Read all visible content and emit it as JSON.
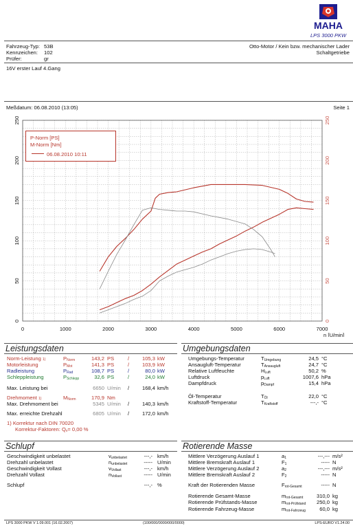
{
  "header": {
    "logo_text": "MAHA",
    "product": "LPS 3000 PKW",
    "fahrzeug_typ_label": "Fahrzeug-Typ:",
    "fahrzeug_typ": "53B",
    "kennzeichen_label": "Kennzeichen:",
    "kennzeichen": "102",
    "pruefer_label": "Prüfer:",
    "pruefer": "gr",
    "engine": "Otto-Motor / Kein bzw. mechanischer Lader",
    "gearbox": "Schaltgetriebe",
    "remark": "16V erster Lauf 4.Gang",
    "measure_date": "Meßdatum: 06.08.2010 (13:05)",
    "page": "Seite 1"
  },
  "chart_data": {
    "type": "line",
    "legend": [
      "P-Norm [PS]",
      "M-Norm [Nm]",
      "06.08.2010 10:11"
    ],
    "xlim": [
      0,
      7000
    ],
    "ylim": [
      0,
      250
    ],
    "xticks": [
      0,
      1000,
      2000,
      3000,
      4000,
      5000,
      6000,
      7000
    ],
    "yticks": [
      0,
      50,
      100,
      150,
      200,
      250
    ],
    "xlabel": "n [U/min]",
    "grid": true,
    "legend_position": "top-left",
    "colors": {
      "primary": "#b7352b",
      "secondary": "#8a8a8a"
    },
    "series": [
      {
        "name": "P-Norm [PS]",
        "color": "#b7352b",
        "x": [
          1800,
          2000,
          2200,
          2400,
          2600,
          2800,
          3000,
          3200,
          3400,
          3600,
          3800,
          4000,
          4200,
          4400,
          4600,
          4800,
          5000,
          5200,
          5400,
          5600,
          5800,
          6000,
          6200,
          6400,
          6600,
          6800
        ],
        "y": [
          14,
          18,
          23,
          28,
          32,
          38,
          46,
          55,
          63,
          71,
          76,
          81,
          86,
          90,
          96,
          101,
          106,
          112,
          117,
          123,
          128,
          133,
          139,
          141,
          140,
          139
        ]
      },
      {
        "name": "M-Norm [Nm]",
        "color": "#b7352b",
        "x": [
          1800,
          2000,
          2200,
          2400,
          2600,
          2800,
          3000,
          3100,
          3200,
          3400,
          3600,
          4000,
          4400,
          4800,
          5200,
          5600,
          6000,
          6200,
          6400,
          6600,
          6800
        ],
        "y": [
          62,
          80,
          93,
          103,
          114,
          127,
          137,
          153,
          158,
          160,
          161,
          166,
          170,
          170,
          170,
          169,
          164,
          159,
          152,
          149,
          148
        ]
      },
      {
        "color": "#8a8a8a",
        "x": [
          1800,
          2000,
          2200,
          2400,
          2600,
          2800,
          3000,
          3200,
          3400,
          3600,
          3800,
          4000,
          4400,
          4800,
          5200,
          5400,
          5600,
          5800,
          5900
        ],
        "y": [
          40,
          62,
          83,
          101,
          120,
          138,
          141,
          139,
          138,
          137,
          137,
          136,
          131,
          127,
          121,
          114,
          105,
          89,
          80
        ]
      },
      {
        "color": "#8a8a8a",
        "x": [
          1800,
          2000,
          2200,
          2400,
          2600,
          2800,
          3000,
          3200,
          3400,
          3600,
          3800,
          4000,
          4200,
          4400,
          4600,
          4800,
          5000,
          5200,
          5400,
          5600,
          5800,
          5900
        ],
        "y": [
          10,
          14,
          18,
          22,
          27,
          31,
          38,
          50,
          56,
          61,
          64,
          67,
          71,
          76,
          80,
          84,
          87,
          89,
          90,
          89,
          86,
          84
        ]
      }
    ]
  },
  "leistung": {
    "title": "Leistungsdaten",
    "rows": [
      {
        "label": "Norm-Leistung",
        "note": "1)",
        "sym": "P",
        "sub": "Norm",
        "v1": "143,2",
        "u1": "PS",
        "sep": "/",
        "v2": "105,3",
        "u2": "kW"
      },
      {
        "label": "Motorleistung",
        "note": "",
        "sym": "P",
        "sub": "Mot",
        "v1": "141,3",
        "u1": "PS",
        "sep": "/",
        "v2": "103,9",
        "u2": "kW"
      },
      {
        "label": "Radleistung",
        "note": "",
        "sym": "P",
        "sub": "Rad",
        "v1": "108,7",
        "u1": "PS",
        "sep": "/",
        "v2": "80,0",
        "u2": "kW"
      },
      {
        "label": "Schleppleistung",
        "note": "",
        "sym": "P",
        "sub": "Schlepp",
        "v1": "32,6",
        "u1": "PS",
        "sep": "/",
        "v2": "24,0",
        "u2": "kW"
      }
    ],
    "max_leistung": {
      "label": "Max. Leistung bei",
      "rpm": "6650",
      "unit": "U/min",
      "sep": "/",
      "v": "168,4",
      "u": "km/h"
    },
    "drehmoment": {
      "label": "Drehmoment",
      "note": "1)",
      "sym": "M",
      "sub": "Norm",
      "v": "170,9",
      "u": "Nm"
    },
    "max_drehmoment": {
      "label": "Max. Drehmoment bei",
      "rpm": "5345",
      "unit": "U/min",
      "sep": "/",
      "v": "140,3",
      "u": "km/h"
    },
    "max_drehzahl": {
      "label": "Max. erreichte Drehzahl",
      "rpm": "6805",
      "unit": "U/min",
      "sep": "/",
      "v": "172,0",
      "u": "km/h"
    },
    "korrektur_1": "1) Korrektur nach DIN 70020",
    "korrektur_2": "Korrektur-Faktoren: Q",
    "korrektur_sub": "v",
    "korrektur_val": "= 0,00 %"
  },
  "umgebung": {
    "title": "Umgebungsdaten",
    "rows": [
      {
        "label": "Umgebungs-Temperatur",
        "sym": "T",
        "sub": "Umgebung",
        "v": "24,5",
        "u": "°C"
      },
      {
        "label": "Ansaugluft-Temperatur",
        "sym": "T",
        "sub": "Ansaugluft",
        "v": "24,7",
        "u": "°C"
      },
      {
        "label": "Relative Luftfeuchte",
        "sym": "H",
        "sub": "Luft",
        "v": "50,2",
        "u": "%"
      },
      {
        "label": "Luftdruck",
        "sym": "p",
        "sub": "Luft",
        "v": "1007,6",
        "u": "hPa"
      },
      {
        "label": "Dampfdruck",
        "sym": "p",
        "sub": "Dampf",
        "v": "15,4",
        "u": "hPa"
      },
      {
        "label": "Öl-Temperatur",
        "sym": "T",
        "sub": "Öl",
        "v": "22,0",
        "u": "°C"
      },
      {
        "label": "Kraftstoff-Temperatur",
        "sym": "T",
        "sub": "Kraftstoff",
        "v": "---,-",
        "u": "°C"
      }
    ]
  },
  "schlupf": {
    "title": "Schlupf",
    "rows": [
      {
        "label": "Geschwindigkeit unbelastet",
        "sym": "v",
        "sub": "unbelastet",
        "v": "---,-",
        "u": "km/h"
      },
      {
        "label": "Drehzahl unbelastet",
        "sym": "n",
        "sub": "unbelastet",
        "v": "-----",
        "u": "U/min"
      },
      {
        "label": "Geschwindigkeit Vollast",
        "sym": "v",
        "sub": "Vollast",
        "v": "---,-",
        "u": "km/h"
      },
      {
        "label": "Drehzahl Vollast",
        "sym": "n",
        "sub": "Vollast",
        "v": "-----",
        "u": "U/min"
      },
      {
        "label": "Schlupf",
        "sym": "",
        "sub": "",
        "v": "---,-",
        "u": "%"
      }
    ]
  },
  "masse": {
    "title": "Rotierende Masse",
    "rows": [
      {
        "label": "Mittlere Verzögerung Auslauf 1",
        "sym": "a",
        "sub": "1",
        "v": "---,---",
        "u": "m/s²"
      },
      {
        "label": "Mittlere Bremskraft Auslauf 1",
        "sym": "F",
        "sub": "1",
        "v": "-----",
        "u": "N"
      },
      {
        "label": "Mittlere Verzögerung Auslauf 2",
        "sym": "a",
        "sub": "2",
        "v": "---,---",
        "u": "m/s²"
      },
      {
        "label": "Mittlere Bremskraft Auslauf 2",
        "sym": "F",
        "sub": "2",
        "v": "-----",
        "u": "N"
      },
      {
        "label": "Kraft der Rotierenden Masse",
        "sym": "F",
        "sub": "rot-Gesamt",
        "v": "-----",
        "u": "N"
      },
      {
        "label": "Rotierende Gesamt-Masse",
        "sym": "m",
        "sub": "rot-Gesamt",
        "v": "310,0",
        "u": "kg"
      },
      {
        "label": "Rotierende Prüfstands-Masse",
        "sym": "m",
        "sub": "rot-Prüfstand",
        "v": "250,0",
        "u": "kg"
      },
      {
        "label": "Rotierende Fahrzeug-Masse",
        "sym": "m",
        "sub": "rot-Fahrzeug",
        "v": "60,0",
        "u": "kg"
      }
    ]
  },
  "footer": {
    "left": "LPS 3000 PKW V 1.09.001 (16.02.2007)",
    "center": "(100/000/0000/000/0000)",
    "right": "LPS-EURO V1.24.00"
  }
}
